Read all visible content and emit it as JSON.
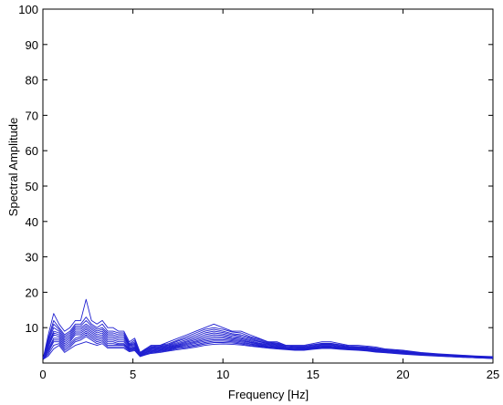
{
  "chart_data": {
    "type": "line",
    "title": "",
    "xlabel": "Frequency [Hz]",
    "ylabel": "Spectral Amplitude",
    "xlim": [
      0,
      25
    ],
    "ylim": [
      0,
      100
    ],
    "xticks": [
      0,
      5,
      10,
      15,
      20,
      25
    ],
    "yticks": [
      10,
      20,
      30,
      40,
      50,
      60,
      70,
      80,
      90,
      100
    ],
    "grid": false,
    "legend": "none",
    "line_color": "#1f1fd0",
    "x": [
      0,
      0.3,
      0.6,
      0.9,
      1.2,
      1.5,
      1.8,
      2.1,
      2.4,
      2.7,
      3.0,
      3.3,
      3.6,
      3.9,
      4.2,
      4.5,
      4.8,
      5.1,
      5.4,
      5.7,
      6.0,
      6.5,
      7.0,
      7.5,
      8.0,
      8.5,
      9.0,
      9.5,
      10.0,
      10.5,
      11.0,
      11.5,
      12.0,
      12.5,
      13.0,
      13.5,
      14.0,
      14.5,
      15.0,
      15.5,
      16.0,
      16.5,
      17.0,
      17.5,
      18.0,
      18.5,
      19.0,
      20.0,
      21.0,
      22.0,
      23.0,
      24.0,
      25.0
    ],
    "series": [
      {
        "values": [
          1,
          8,
          14,
          11,
          9,
          10,
          12,
          12,
          18,
          12,
          11,
          12,
          10,
          10,
          9,
          9,
          6,
          7,
          3,
          4,
          5,
          5,
          6,
          7,
          8,
          9,
          10,
          11,
          10,
          9,
          9,
          8,
          7,
          6,
          6,
          5,
          5,
          5,
          5.5,
          6,
          6,
          5.5,
          5,
          5,
          4.8,
          4.5,
          4,
          3.6,
          3,
          2.6,
          2.3,
          2,
          1.8
        ]
      },
      {
        "values": [
          1,
          7,
          12,
          10,
          8,
          9,
          11,
          11,
          13,
          11,
          10,
          11,
          9,
          9,
          8.5,
          8.5,
          5.5,
          6.5,
          3,
          4,
          4.8,
          5,
          5.5,
          6.5,
          7.5,
          8.5,
          9.5,
          10,
          9.5,
          8.8,
          8.5,
          7.5,
          6.8,
          6,
          5.7,
          5,
          4.8,
          4.8,
          5.2,
          5.6,
          5.6,
          5.2,
          4.8,
          4.7,
          4.5,
          4.2,
          3.8,
          3.4,
          2.9,
          2.5,
          2.2,
          1.9,
          1.7
        ]
      },
      {
        "values": [
          1,
          6.5,
          11,
          9.5,
          7.5,
          8.5,
          10.5,
          10.5,
          12,
          10.5,
          9.5,
          10,
          8.5,
          8.5,
          8,
          8,
          5.2,
          6,
          2.8,
          3.8,
          4.5,
          4.8,
          5.2,
          6.2,
          7,
          8,
          9,
          9.5,
          9,
          8.3,
          8,
          7.2,
          6.5,
          5.8,
          5.5,
          4.8,
          4.6,
          4.6,
          5,
          5.4,
          5.4,
          5,
          4.6,
          4.5,
          4.3,
          4,
          3.7,
          3.3,
          2.8,
          2.4,
          2.1,
          1.8,
          1.6
        ]
      },
      {
        "values": [
          1,
          6,
          10,
          9,
          7,
          8,
          10,
          10,
          11,
          10,
          9,
          9.5,
          8,
          8,
          7.5,
          7.5,
          5,
          5.6,
          2.6,
          3.6,
          4.3,
          4.6,
          5,
          5.8,
          6.6,
          7.5,
          8.5,
          9,
          8.6,
          8,
          7.6,
          6.9,
          6.2,
          5.6,
          5.3,
          4.7,
          4.5,
          4.4,
          4.8,
          5.2,
          5.2,
          4.8,
          4.5,
          4.4,
          4.2,
          3.9,
          3.6,
          3.2,
          2.7,
          2.3,
          2,
          1.8,
          1.6
        ]
      },
      {
        "values": [
          1,
          5.5,
          9,
          8.5,
          6.5,
          7.5,
          9.5,
          9.5,
          10.5,
          9.5,
          8.5,
          9,
          7.5,
          7.5,
          7,
          7,
          4.8,
          5.3,
          2.5,
          3.4,
          4.1,
          4.4,
          4.8,
          5.5,
          6.2,
          7,
          8,
          8.5,
          8.2,
          7.6,
          7.2,
          6.6,
          6,
          5.4,
          5.1,
          4.6,
          4.4,
          4.3,
          4.6,
          5,
          5,
          4.7,
          4.4,
          4.3,
          4.1,
          3.8,
          3.5,
          3.1,
          2.6,
          2.3,
          2,
          1.7,
          1.5
        ]
      },
      {
        "values": [
          1,
          5,
          8.5,
          8,
          6,
          7,
          9,
          9,
          10,
          9,
          8,
          8.5,
          7,
          7,
          6.5,
          6.5,
          4.5,
          5,
          2.4,
          3.2,
          3.9,
          4.2,
          4.6,
          5.2,
          5.9,
          6.6,
          7.5,
          8,
          7.8,
          7.2,
          6.9,
          6.3,
          5.7,
          5.2,
          4.9,
          4.4,
          4.2,
          4.2,
          4.5,
          4.8,
          4.8,
          4.5,
          4.3,
          4.2,
          4,
          3.7,
          3.4,
          3,
          2.6,
          2.2,
          1.9,
          1.7,
          1.5
        ]
      },
      {
        "values": [
          1,
          4.5,
          8,
          7.5,
          5.5,
          6.5,
          8.5,
          8.5,
          9.5,
          8.5,
          7.5,
          8,
          6.5,
          6.5,
          6,
          6,
          4.2,
          4.7,
          2.3,
          3,
          3.7,
          4,
          4.4,
          5,
          5.6,
          6.2,
          7,
          7.5,
          7.4,
          6.9,
          6.6,
          6,
          5.5,
          5,
          4.7,
          4.3,
          4.1,
          4.1,
          4.4,
          4.7,
          4.7,
          4.4,
          4.2,
          4.1,
          3.9,
          3.6,
          3.3,
          2.9,
          2.5,
          2.2,
          1.9,
          1.6,
          1.5
        ]
      },
      {
        "values": [
          1,
          4,
          7,
          7,
          5,
          6,
          8,
          8,
          9,
          8,
          7,
          7.5,
          6,
          6,
          5.5,
          5.5,
          4,
          4.4,
          2.2,
          2.9,
          3.5,
          3.8,
          4.2,
          4.8,
          5.3,
          5.9,
          6.6,
          7,
          7,
          6.6,
          6.3,
          5.8,
          5.3,
          4.8,
          4.5,
          4.2,
          4,
          4,
          4.3,
          4.6,
          4.6,
          4.3,
          4.1,
          4,
          3.8,
          3.5,
          3.2,
          2.8,
          2.4,
          2.1,
          1.8,
          1.6,
          1.4
        ]
      },
      {
        "values": [
          1,
          3.5,
          6.5,
          6.5,
          4.5,
          5.5,
          7,
          7.5,
          8.5,
          7.5,
          6.5,
          7,
          5.5,
          5.5,
          5.2,
          5.2,
          3.8,
          4.2,
          2.1,
          2.8,
          3.3,
          3.6,
          4,
          4.6,
          5,
          5.6,
          6.2,
          6.6,
          6.6,
          6.3,
          6,
          5.5,
          5.1,
          4.7,
          4.4,
          4.1,
          3.9,
          3.9,
          4.2,
          4.4,
          4.4,
          4.2,
          4,
          3.9,
          3.7,
          3.4,
          3.1,
          2.7,
          2.4,
          2.1,
          1.8,
          1.6,
          1.4
        ]
      },
      {
        "values": [
          1,
          3,
          6,
          6,
          4,
          5,
          6.5,
          7,
          8,
          7,
          6,
          6.5,
          5,
          5,
          5,
          5,
          3.6,
          4,
          2,
          2.6,
          3.1,
          3.4,
          3.8,
          4.4,
          4.7,
          5.2,
          5.8,
          6.2,
          6.2,
          6,
          5.7,
          5.3,
          4.9,
          4.5,
          4.3,
          4,
          3.8,
          3.8,
          4.1,
          4.3,
          4.3,
          4.1,
          3.9,
          3.8,
          3.6,
          3.3,
          3,
          2.7,
          2.3,
          2,
          1.8,
          1.5,
          1.4
        ]
      },
      {
        "values": [
          1,
          2.5,
          5,
          5.5,
          3.5,
          4.5,
          6,
          6.5,
          7.5,
          6.5,
          5.5,
          6,
          4.6,
          4.6,
          4.6,
          4.6,
          3.4,
          3.8,
          1.9,
          2.5,
          2.9,
          3.2,
          3.6,
          4.1,
          4.4,
          4.9,
          5.4,
          5.8,
          5.8,
          5.7,
          5.4,
          5,
          4.7,
          4.4,
          4.2,
          3.9,
          3.7,
          3.7,
          4,
          4.2,
          4.2,
          4,
          3.8,
          3.7,
          3.5,
          3.2,
          3,
          2.6,
          2.3,
          2,
          1.7,
          1.5,
          1.3
        ]
      },
      {
        "values": [
          1,
          2,
          4,
          5,
          3,
          4,
          5,
          5.5,
          6,
          5.5,
          5,
          5.5,
          4.2,
          4.2,
          4.2,
          4.2,
          3.2,
          3.5,
          1.8,
          2.3,
          2.7,
          3,
          3.4,
          3.8,
          4.1,
          4.5,
          5,
          5.3,
          5.4,
          5.3,
          5.1,
          4.8,
          4.5,
          4.2,
          4,
          3.8,
          3.6,
          3.6,
          3.9,
          4.1,
          4.1,
          3.9,
          3.7,
          3.6,
          3.4,
          3.1,
          2.9,
          2.5,
          2.2,
          1.9,
          1.7,
          1.5,
          1.3
        ]
      }
    ]
  }
}
